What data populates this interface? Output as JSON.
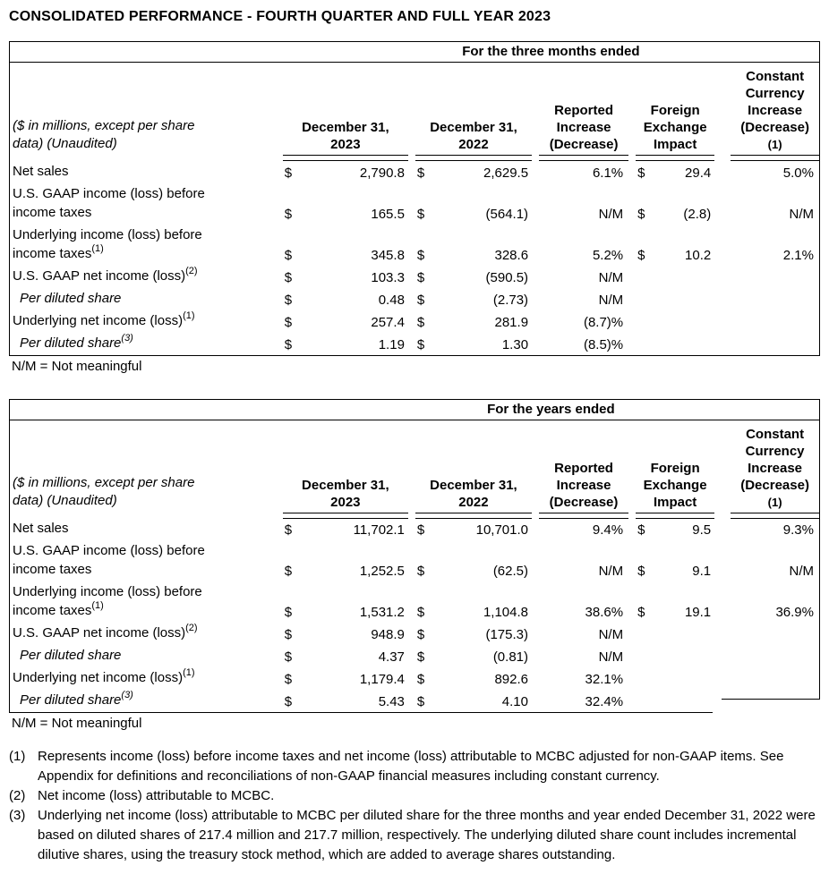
{
  "title": "CONSOLIDATED PERFORMANCE - FOURTH QUARTER AND FULL YEAR 2023",
  "currency_symbol": "$",
  "tables": [
    {
      "period_header": "For the three months ended",
      "row_label_header_lines": [
        "($ in millions, except per share",
        "data) (Unaudited)"
      ],
      "columns": [
        {
          "lines": [
            "December 31,",
            "2023"
          ]
        },
        {
          "lines": [
            "December 31,",
            "2022"
          ]
        },
        {
          "lines": [
            "Reported",
            "Increase",
            "(Decrease)"
          ]
        },
        {
          "lines": [
            "Foreign",
            "Exchange",
            "Impact"
          ]
        },
        {
          "lines": [
            "Constant",
            "Currency",
            "Increase",
            "(Decrease)",
            "(1)"
          ]
        }
      ],
      "rows": [
        {
          "label_lines": [
            "Net sales"
          ],
          "sup": "",
          "italic": false,
          "indent": false,
          "v2023": "2,790.8",
          "v2022": "2,629.5",
          "reported": "6.1%",
          "fx": "29.4",
          "cc": "5.0%"
        },
        {
          "label_lines": [
            "U.S. GAAP income (loss) before",
            "income taxes"
          ],
          "sup": "",
          "italic": false,
          "indent": false,
          "v2023": "165.5",
          "v2022": "(564.1)",
          "reported": "N/M",
          "fx": "(2.8)",
          "cc": "N/M"
        },
        {
          "label_lines": [
            "Underlying income (loss) before",
            "income taxes"
          ],
          "sup": "(1)",
          "italic": false,
          "indent": false,
          "v2023": "345.8",
          "v2022": "328.6",
          "reported": "5.2%",
          "fx": "10.2",
          "cc": "2.1%"
        },
        {
          "label_lines": [
            "U.S. GAAP net income (loss)"
          ],
          "sup": "(2)",
          "italic": false,
          "indent": false,
          "v2023": "103.3",
          "v2022": "(590.5)",
          "reported": "N/M",
          "fx": "",
          "cc": ""
        },
        {
          "label_lines": [
            "Per diluted share"
          ],
          "sup": "",
          "italic": true,
          "indent": true,
          "v2023": "0.48",
          "v2022": "(2.73)",
          "reported": "N/M",
          "fx": "",
          "cc": ""
        },
        {
          "label_lines": [
            "Underlying net income (loss)"
          ],
          "sup": "(1)",
          "italic": false,
          "indent": false,
          "v2023": "257.4",
          "v2022": "281.9",
          "reported": "(8.7)%",
          "fx": "",
          "cc": ""
        },
        {
          "label_lines": [
            "Per diluted share"
          ],
          "sup": "(3)",
          "italic": true,
          "indent": true,
          "v2023": "1.19",
          "v2022": "1.30",
          "reported": "(8.5)%",
          "fx": "",
          "cc": ""
        }
      ],
      "note": "N/M = Not meaningful",
      "stepped_bottom_right": false
    },
    {
      "period_header": "For the years ended",
      "row_label_header_lines": [
        "($ in millions, except per share",
        "data) (Unaudited)"
      ],
      "columns": [
        {
          "lines": [
            "December 31,",
            "2023"
          ]
        },
        {
          "lines": [
            "December 31,",
            "2022"
          ]
        },
        {
          "lines": [
            "Reported",
            "Increase",
            "(Decrease)"
          ]
        },
        {
          "lines": [
            "Foreign",
            "Exchange",
            "Impact"
          ]
        },
        {
          "lines": [
            "Constant",
            "Currency",
            "Increase",
            "(Decrease)",
            "(1)"
          ]
        }
      ],
      "rows": [
        {
          "label_lines": [
            "Net sales"
          ],
          "sup": "",
          "italic": false,
          "indent": false,
          "v2023": "11,702.1",
          "v2022": "10,701.0",
          "reported": "9.4%",
          "fx": "9.5",
          "cc": "9.3%"
        },
        {
          "label_lines": [
            "U.S. GAAP income (loss) before",
            "income taxes"
          ],
          "sup": "",
          "italic": false,
          "indent": false,
          "v2023": "1,252.5",
          "v2022": "(62.5)",
          "reported": "N/M",
          "fx": "9.1",
          "cc": "N/M"
        },
        {
          "label_lines": [
            "Underlying income (loss) before",
            "income taxes"
          ],
          "sup": "(1)",
          "italic": false,
          "indent": false,
          "v2023": "1,531.2",
          "v2022": "1,104.8",
          "reported": "38.6%",
          "fx": "19.1",
          "cc": "36.9%"
        },
        {
          "label_lines": [
            "U.S. GAAP net income (loss)"
          ],
          "sup": "(2)",
          "italic": false,
          "indent": false,
          "v2023": "948.9",
          "v2022": "(175.3)",
          "reported": "N/M",
          "fx": "",
          "cc": ""
        },
        {
          "label_lines": [
            "Per diluted share"
          ],
          "sup": "",
          "italic": true,
          "indent": true,
          "v2023": "4.37",
          "v2022": "(0.81)",
          "reported": "N/M",
          "fx": "",
          "cc": ""
        },
        {
          "label_lines": [
            "Underlying net income (loss)"
          ],
          "sup": "(1)",
          "italic": false,
          "indent": false,
          "v2023": "1,179.4",
          "v2022": "892.6",
          "reported": "32.1%",
          "fx": "",
          "cc": ""
        },
        {
          "label_lines": [
            "Per diluted share"
          ],
          "sup": "(3)",
          "italic": true,
          "indent": true,
          "v2023": "5.43",
          "v2022": "4.10",
          "reported": "32.4%",
          "fx": "",
          "cc": ""
        }
      ],
      "note": "N/M = Not meaningful",
      "stepped_bottom_right": true
    }
  ],
  "footnotes": [
    {
      "marker": "(1)",
      "text": "Represents income (loss) before income taxes and net income (loss) attributable to MCBC adjusted for non-GAAP items. See Appendix for definitions and reconciliations of non-GAAP financial measures including constant currency."
    },
    {
      "marker": "(2)",
      "text": "Net income (loss) attributable to MCBC."
    },
    {
      "marker": "(3)",
      "text": "Underlying net income (loss) attributable to MCBC per diluted share for the three months and year ended December 31, 2022 were based on diluted shares of 217.4 million and 217.7 million, respectively. The underlying diluted share count includes incremental dilutive shares, using the treasury stock method, which are added to average shares outstanding."
    }
  ]
}
